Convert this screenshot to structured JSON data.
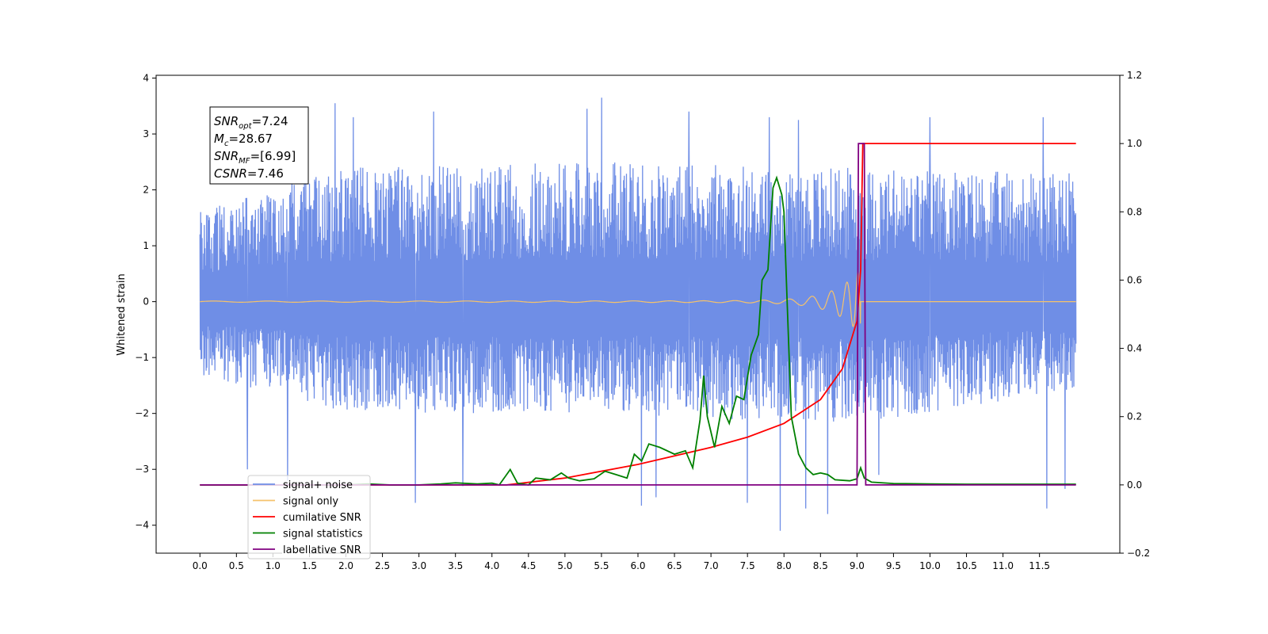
{
  "chart_data": {
    "type": "line",
    "title": "",
    "xlabel": "",
    "ylabel": "Whitened strain",
    "xlim": [
      -0.6,
      12.6
    ],
    "ylim": [
      -4.5,
      4.05
    ],
    "y2lim": [
      -0.2,
      1.2
    ],
    "x_ticks": [
      "0.0",
      "0.5",
      "1.0",
      "1.5",
      "2.0",
      "2.5",
      "3.0",
      "3.5",
      "4.0",
      "4.5",
      "5.0",
      "5.5",
      "6.0",
      "6.5",
      "7.0",
      "7.5",
      "8.0",
      "8.5",
      "9.0",
      "9.5",
      "10.0",
      "10.5",
      "11.0",
      "11.5"
    ],
    "y_ticks": [
      "4",
      "3",
      "2",
      "1",
      "0",
      "−1",
      "−2",
      "−3",
      "−4"
    ],
    "y2_ticks": [
      "1.2",
      "1.0",
      "0.8",
      "0.6",
      "0.4",
      "0.2",
      "0.0",
      "−0.2"
    ],
    "annotation": [
      {
        "main": "SNR",
        "sub": "opt",
        "rest": "=7.24"
      },
      {
        "main": "M",
        "sub": "c",
        "rest": "=28.67"
      },
      {
        "main": "SNR",
        "sub": "MF",
        "rest": "=[6.99]"
      },
      {
        "main": "CSNR",
        "sub": "",
        "rest": "=7.46"
      }
    ],
    "legend_position": "lower-left",
    "series": [
      {
        "name": "signal+ noise",
        "axis": "left",
        "color": "#6f8ee6",
        "kind": "noise",
        "x_range": [
          0.0,
          12.0
        ],
        "envelope_upper": [
          [
            0.0,
            1.7
          ],
          [
            2.0,
            2.4
          ],
          [
            5.5,
            2.5
          ],
          [
            9.0,
            2.4
          ],
          [
            12.0,
            2.3
          ]
        ],
        "envelope_lower": [
          [
            0.0,
            -1.3
          ],
          [
            2.0,
            -2.0
          ],
          [
            5.5,
            -2.0
          ],
          [
            9.0,
            -2.2
          ],
          [
            12.0,
            -1.6
          ]
        ],
        "spikes": [
          [
            1.85,
            3.55
          ],
          [
            2.1,
            3.3
          ],
          [
            3.2,
            3.4
          ],
          [
            5.5,
            3.65
          ],
          [
            5.3,
            3.45
          ],
          [
            6.7,
            3.4
          ],
          [
            7.8,
            3.3
          ],
          [
            8.2,
            3.25
          ],
          [
            10.0,
            3.3
          ],
          [
            11.55,
            3.3
          ],
          [
            0.65,
            -3.0
          ],
          [
            1.2,
            -3.2
          ],
          [
            2.95,
            -3.6
          ],
          [
            3.6,
            -3.3
          ],
          [
            6.05,
            -3.65
          ],
          [
            6.25,
            -3.5
          ],
          [
            7.5,
            -3.6
          ],
          [
            7.95,
            -4.1
          ],
          [
            8.3,
            -3.7
          ],
          [
            8.6,
            -3.8
          ],
          [
            9.3,
            -3.1
          ],
          [
            11.6,
            -3.7
          ],
          [
            11.85,
            -3.35
          ]
        ]
      },
      {
        "name": "signal only",
        "axis": "left",
        "color": "#f5c26b",
        "kind": "chirp",
        "x_range": [
          0.0,
          12.0
        ],
        "merger_time": 9.05,
        "peak_amplitude": 0.72
      },
      {
        "name": "cumilative SNR",
        "axis": "right",
        "color": "#ff0000",
        "points": [
          [
            0.0,
            0.0
          ],
          [
            4.2,
            0.0
          ],
          [
            5.0,
            0.02
          ],
          [
            6.0,
            0.06
          ],
          [
            7.0,
            0.11
          ],
          [
            7.5,
            0.14
          ],
          [
            8.0,
            0.18
          ],
          [
            8.5,
            0.25
          ],
          [
            8.8,
            0.34
          ],
          [
            9.0,
            0.48
          ],
          [
            9.05,
            0.63
          ],
          [
            9.08,
            1.0
          ],
          [
            12.0,
            1.0
          ]
        ]
      },
      {
        "name": "signal statistics",
        "axis": "right",
        "color": "#008000",
        "points": [
          [
            0.0,
            0.0
          ],
          [
            0.5,
            0.0
          ],
          [
            1.0,
            0.0
          ],
          [
            1.5,
            0.0
          ],
          [
            2.0,
            0.0
          ],
          [
            2.3,
            0.003
          ],
          [
            2.6,
            0.0
          ],
          [
            3.0,
            0.0
          ],
          [
            3.3,
            0.003
          ],
          [
            3.5,
            0.006
          ],
          [
            3.8,
            0.003
          ],
          [
            4.0,
            0.005
          ],
          [
            4.1,
            0.0
          ],
          [
            4.25,
            0.045
          ],
          [
            4.35,
            0.005
          ],
          [
            4.5,
            0.0
          ],
          [
            4.6,
            0.02
          ],
          [
            4.8,
            0.015
          ],
          [
            4.95,
            0.035
          ],
          [
            5.05,
            0.02
          ],
          [
            5.2,
            0.012
          ],
          [
            5.4,
            0.018
          ],
          [
            5.55,
            0.04
          ],
          [
            5.7,
            0.03
          ],
          [
            5.85,
            0.02
          ],
          [
            5.95,
            0.09
          ],
          [
            6.05,
            0.07
          ],
          [
            6.15,
            0.12
          ],
          [
            6.3,
            0.11
          ],
          [
            6.5,
            0.09
          ],
          [
            6.65,
            0.1
          ],
          [
            6.75,
            0.05
          ],
          [
            6.85,
            0.19
          ],
          [
            6.9,
            0.32
          ],
          [
            6.95,
            0.2
          ],
          [
            7.05,
            0.11
          ],
          [
            7.15,
            0.23
          ],
          [
            7.25,
            0.18
          ],
          [
            7.35,
            0.26
          ],
          [
            7.45,
            0.25
          ],
          [
            7.55,
            0.38
          ],
          [
            7.65,
            0.44
          ],
          [
            7.7,
            0.6
          ],
          [
            7.78,
            0.63
          ],
          [
            7.85,
            0.87
          ],
          [
            7.9,
            0.9
          ],
          [
            7.97,
            0.85
          ],
          [
            8.0,
            0.8
          ],
          [
            8.05,
            0.5
          ],
          [
            8.1,
            0.2
          ],
          [
            8.2,
            0.09
          ],
          [
            8.3,
            0.05
          ],
          [
            8.4,
            0.03
          ],
          [
            8.5,
            0.035
          ],
          [
            8.6,
            0.03
          ],
          [
            8.7,
            0.015
          ],
          [
            8.9,
            0.012
          ],
          [
            9.0,
            0.018
          ],
          [
            9.05,
            0.05
          ],
          [
            9.1,
            0.02
          ],
          [
            9.2,
            0.008
          ],
          [
            9.5,
            0.004
          ],
          [
            10.0,
            0.003
          ],
          [
            10.5,
            0.002
          ],
          [
            11.0,
            0.002
          ],
          [
            11.5,
            0.002
          ],
          [
            12.0,
            0.002
          ]
        ]
      },
      {
        "name": "label",
        "axis": "right",
        "color": "#800080",
        "points": [
          [
            0.0,
            0.0
          ],
          [
            9.0,
            0.0
          ],
          [
            9.02,
            1.0
          ],
          [
            9.1,
            1.0
          ],
          [
            9.12,
            0.0
          ],
          [
            12.0,
            0.0
          ]
        ]
      },
      {
        "name": "cumilative SNR",
        "axis": "right",
        "color": "#ff0000",
        "legend_only": true,
        "legend_text_color": "#bbbbbb"
      }
    ]
  }
}
